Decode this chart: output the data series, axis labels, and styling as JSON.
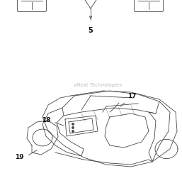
{
  "bg_color": "#ffffff",
  "line_color": "#444444",
  "label_color": "#111111",
  "watermark_text": "vNext Technologies",
  "watermark_color": "#bbbbbb",
  "label_5": "5",
  "label_17": "17",
  "label_18": "18",
  "label_19": "19",
  "figsize": [
    2.57,
    2.58
  ],
  "dpi": 100
}
